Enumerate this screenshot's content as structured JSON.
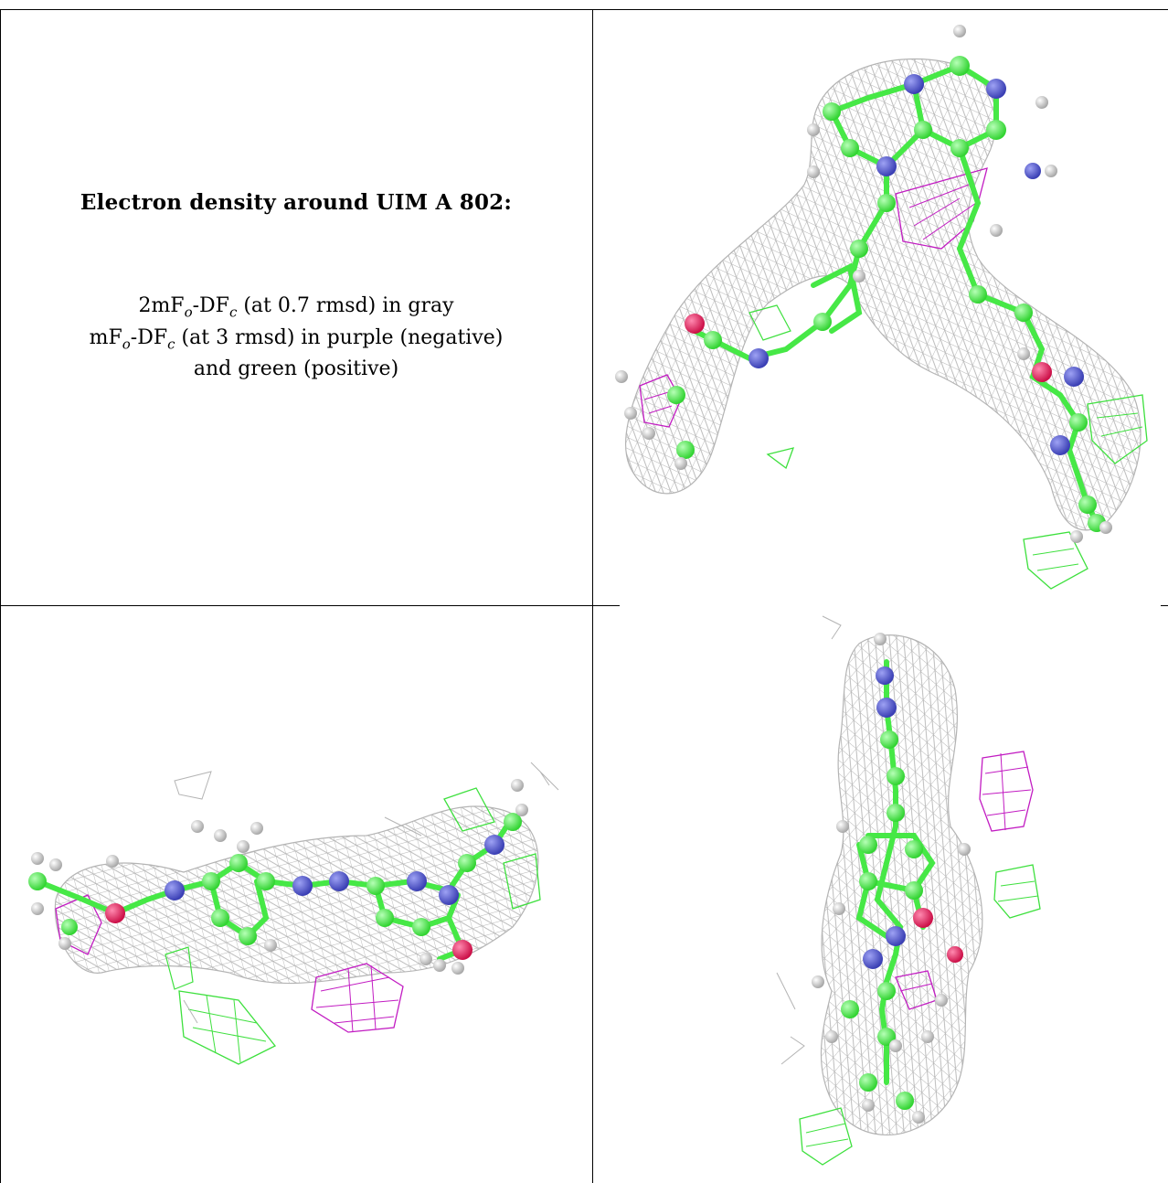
{
  "caption": {
    "title": "Electron density around UIM A 802:",
    "line1": {
      "pre": "2mF",
      "sub1": "o",
      "mid": "-DF",
      "sub2": "c",
      "post": " (at 0.7 rmsd) in gray"
    },
    "line2": {
      "pre": "mF",
      "sub1": "o",
      "mid": "-DF",
      "sub2": "c",
      "post": " (at 3 rmsd) in purple (negative)"
    },
    "line3": "and green (positive)"
  },
  "colors": {
    "mesh_gray": "#b4b4b4",
    "mesh_purple": "#c21cc2",
    "mesh_green": "#3ee03e",
    "carbon": "#46e846",
    "nitrogen": "#4a4fc8",
    "oxygen": "#e0225a",
    "hydrogen": "#dcdcdc"
  },
  "panels": [
    {
      "view": "molecule-view-top",
      "icon": "ligand-density-icon"
    },
    {
      "view": "molecule-view-side",
      "icon": "ligand-density-icon"
    },
    {
      "view": "molecule-view-end",
      "icon": "ligand-density-icon"
    }
  ]
}
